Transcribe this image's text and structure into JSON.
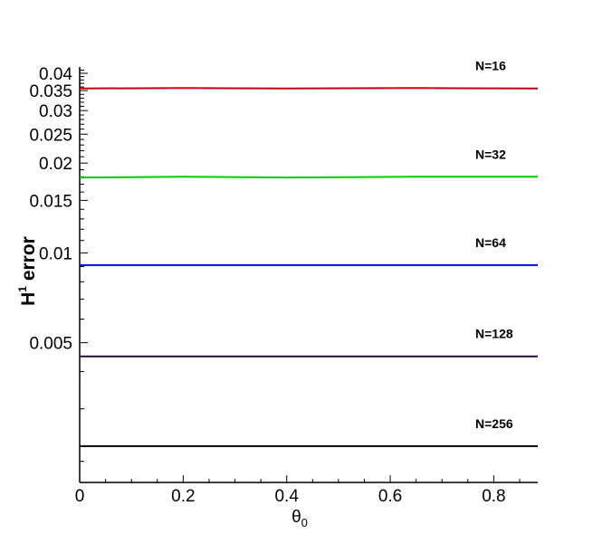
{
  "chart_data": {
    "type": "line",
    "xlabel": "θ",
    "xlabel_sub": "0",
    "ylabel": "H",
    "ylabel_sup": "1",
    "ylabel_rest": " error",
    "y_scale": "log",
    "xlim": [
      0,
      0.885
    ],
    "ylim": [
      0.0017,
      0.042
    ],
    "x_ticks": [
      0,
      0.2,
      0.4,
      0.6,
      0.8
    ],
    "x_tick_labels": [
      "0",
      "0.2",
      "0.4",
      "0.6",
      "0.8"
    ],
    "y_ticks": [
      0.005,
      0.01,
      0.015,
      0.02,
      0.025,
      0.03,
      0.035,
      0.04
    ],
    "y_tick_labels": [
      "0.005",
      "0.01",
      "0.015",
      "0.02",
      "0.025",
      "0.03",
      "0.035",
      "0.04"
    ],
    "grid": false,
    "series": [
      {
        "name": "N=16",
        "color": "#cc0000",
        "x": [
          0,
          0.2,
          0.4,
          0.65,
          0.885
        ],
        "y": [
          0.0356,
          0.0357,
          0.0356,
          0.0357,
          0.0356
        ]
      },
      {
        "name": "N=32",
        "color": "#00cc00",
        "x": [
          0,
          0.2,
          0.4,
          0.65,
          0.885
        ],
        "y": [
          0.0179,
          0.018,
          0.0179,
          0.018,
          0.018
        ]
      },
      {
        "name": "N=64",
        "color": "#0000ff",
        "x": [
          0,
          0.885
        ],
        "y": [
          0.0091,
          0.0091
        ]
      },
      {
        "name": "N=128",
        "color": "#330044",
        "x": [
          0,
          0.885
        ],
        "y": [
          0.0045,
          0.0045
        ]
      },
      {
        "name": "N=256",
        "color": "#000000",
        "x": [
          0,
          0.885
        ],
        "y": [
          0.00225,
          0.00225
        ]
      }
    ]
  }
}
